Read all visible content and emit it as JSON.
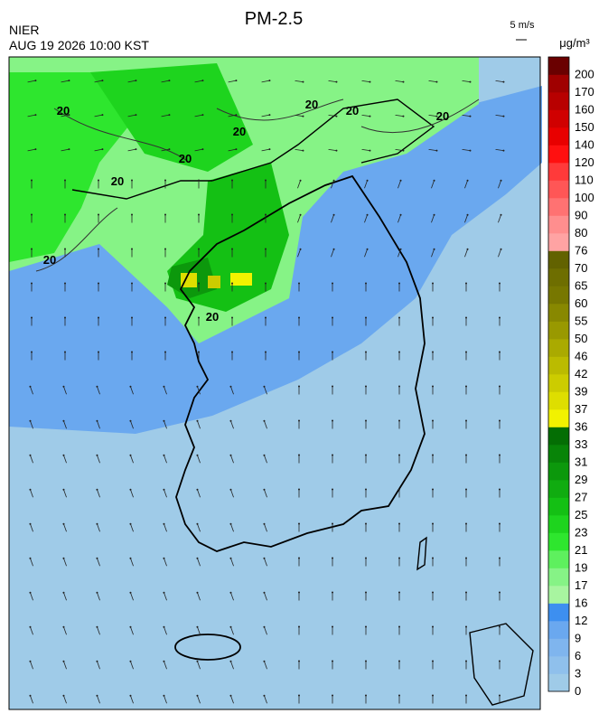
{
  "header": {
    "title": "PM-2.5",
    "source": "NIER",
    "datetime": "AUG 19 2026 10:00 KST",
    "wind_scale": "5 m/s",
    "unit": "μg/m³"
  },
  "colorbar": {
    "labels": [
      0,
      3,
      6,
      9,
      12,
      16,
      17,
      19,
      21,
      23,
      25,
      27,
      29,
      31,
      33,
      36,
      37,
      39,
      42,
      46,
      50,
      55,
      60,
      65,
      70,
      76,
      80,
      90,
      100,
      110,
      120,
      140,
      150,
      160,
      170,
      200
    ],
    "colors": [
      "#9fcbe8",
      "#8fc0ec",
      "#7fb5ee",
      "#6aa8ef",
      "#3d8ff0",
      "#a8f5a0",
      "#86f386",
      "#5ef05e",
      "#2ee62e",
      "#1ed41e",
      "#14c014",
      "#10ac10",
      "#0c980c",
      "#088408",
      "#046e04",
      "#f2f200",
      "#dede00",
      "#cccc00",
      "#bbbb00",
      "#aaaa00",
      "#999900",
      "#888800",
      "#777700",
      "#6e6e00",
      "#626200",
      "#ffa3a3",
      "#ff8e8e",
      "#ff7272",
      "#ff5656",
      "#ff3a3a",
      "#ff1010",
      "#e80000",
      "#d00000",
      "#b80000",
      "#a00000",
      "#6a0000"
    ]
  },
  "contour_labels": [
    "20",
    "20",
    "20",
    "20",
    "20",
    "20",
    "20",
    "20",
    "20"
  ]
}
